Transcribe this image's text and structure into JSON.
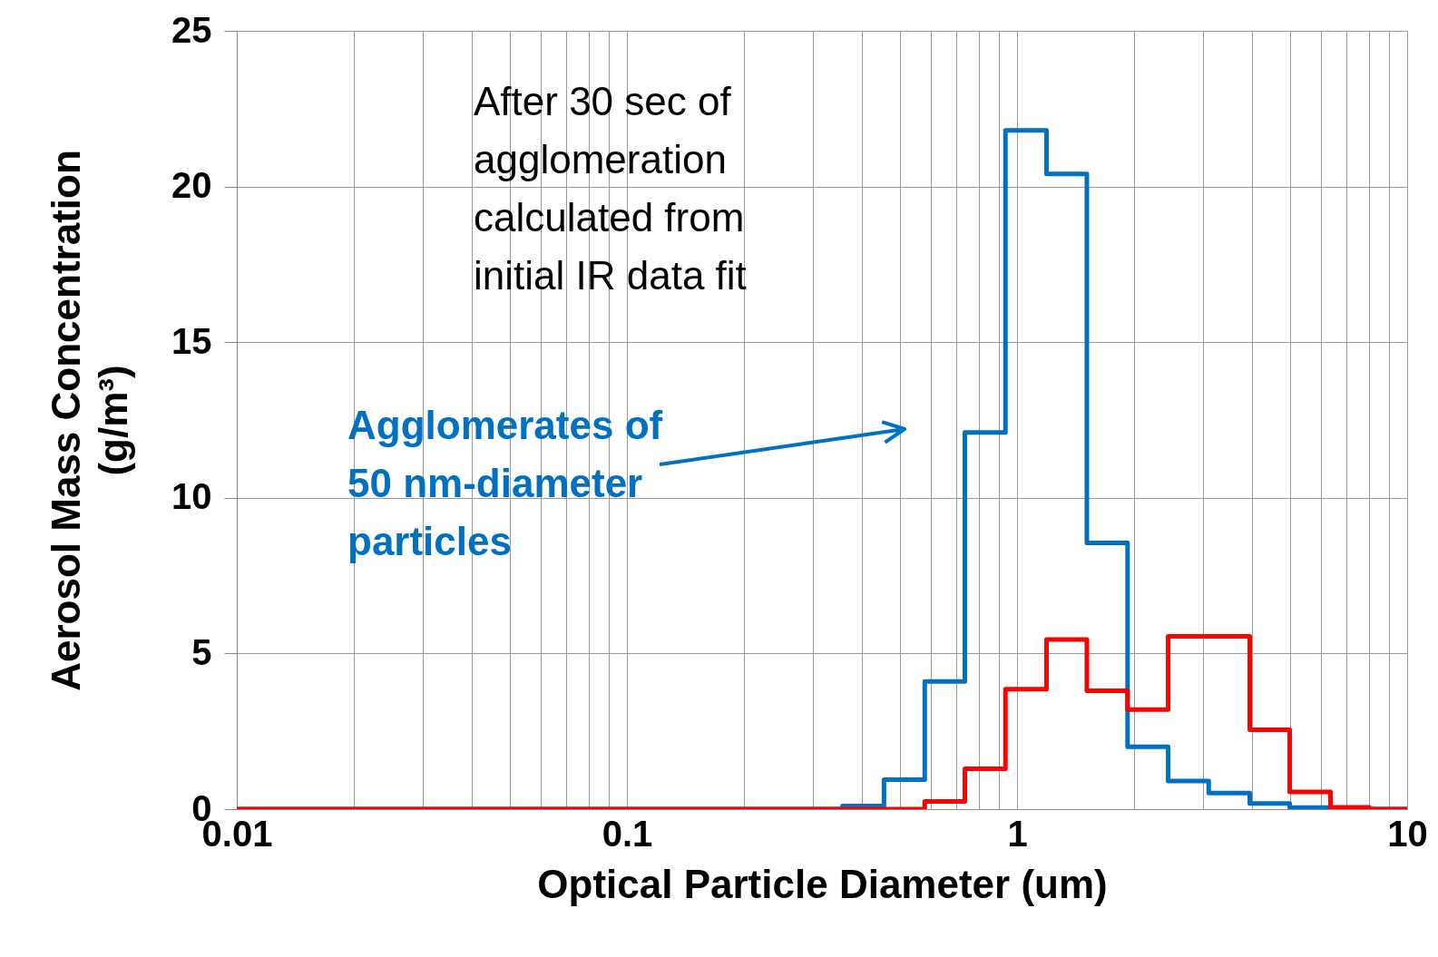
{
  "chart_data": {
    "type": "step",
    "xlabel": "Optical Particle Diameter (um)",
    "ylabel": "Aerosol Mass Concentration\n(g/m³)",
    "log": "x",
    "grid": true,
    "xlim": [
      0.01,
      10
    ],
    "ylim": [
      0,
      25
    ],
    "xticks": [
      0.01,
      {
        "value": 0.02,
        "label": null
      },
      {
        "value": 0.03,
        "label": null
      },
      {
        "value": 0.04,
        "label": null
      },
      {
        "value": 0.05,
        "label": null
      },
      {
        "value": 0.06,
        "label": null
      },
      {
        "value": 0.07,
        "label": null
      },
      {
        "value": 0.08,
        "label": null
      },
      {
        "value": 0.09,
        "label": null
      },
      0.1,
      {
        "value": 0.2,
        "label": null
      },
      {
        "value": 0.3,
        "label": null
      },
      {
        "value": 0.4,
        "label": null
      },
      {
        "value": 0.5,
        "label": null
      },
      {
        "value": 0.6,
        "label": null
      },
      {
        "value": 0.7,
        "label": null
      },
      {
        "value": 0.8,
        "label": null
      },
      {
        "value": 0.9,
        "label": null
      },
      1,
      {
        "value": 2,
        "label": null
      },
      {
        "value": 3,
        "label": null
      },
      {
        "value": 4,
        "label": null
      },
      {
        "value": 5,
        "label": null
      },
      {
        "value": 6,
        "label": null
      },
      {
        "value": 7,
        "label": null
      },
      {
        "value": 8,
        "label": null
      },
      {
        "value": 9,
        "label": null
      },
      10
    ],
    "yticks": [
      0,
      5,
      10,
      15,
      20,
      25
    ],
    "series": [
      {
        "color": "#0070c0",
        "x": [
          0.01,
          0.357,
          0.456,
          0.58,
          0.735,
          0.934,
          1.19,
          1.51,
          1.92,
          2.44,
          3.1,
          3.95,
          5.0,
          6.36,
          10
        ],
        "values": [
          0,
          0.1,
          0.95,
          4.1,
          12.1,
          21.8,
          20.4,
          8.55,
          2.0,
          0.9,
          0.52,
          0.18,
          0.05,
          0,
          0
        ]
      },
      {
        "color": "#ff0000",
        "x": [
          0.01,
          0.58,
          0.735,
          0.934,
          1.19,
          1.51,
          1.92,
          2.44,
          3.95,
          5.0,
          6.36,
          8.0,
          10
        ],
        "values": [
          0,
          0.25,
          1.3,
          3.85,
          5.45,
          3.8,
          3.2,
          5.55,
          2.55,
          0.55,
          0.06,
          0,
          0
        ]
      }
    ],
    "annotations": [
      "After 30 sec of\nagglomeration\ncalculated from\ninitial IR data fit",
      "Agglomerates of\n50 nm-diameter\nparticles"
    ]
  }
}
